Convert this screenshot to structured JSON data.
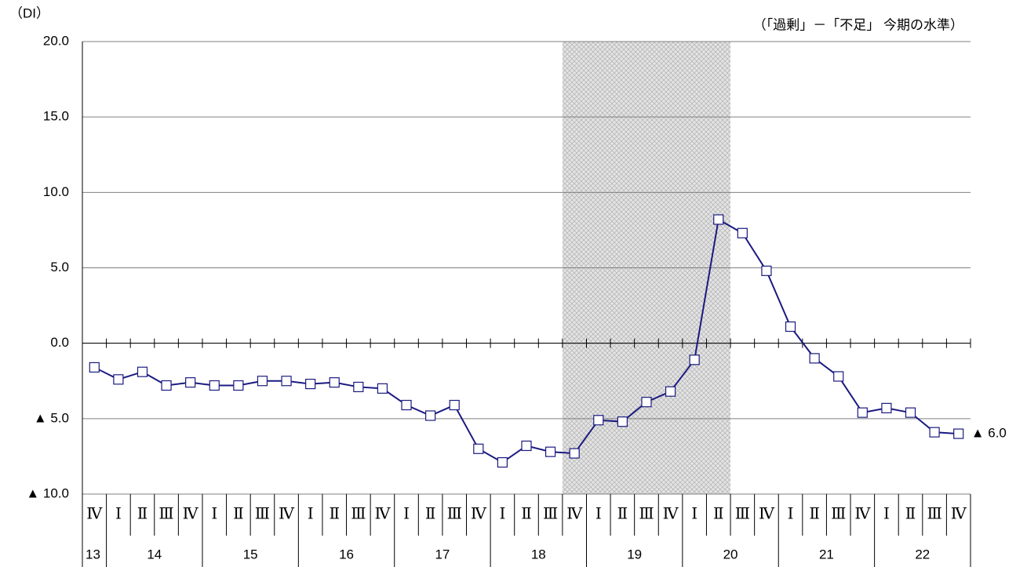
{
  "chart_data": {
    "type": "line",
    "y_unit_label": "（DI）",
    "subtitle": "（「過剰」－「不足」 今期の水準）",
    "category_groups": [
      {
        "label": "13",
        "categories": [
          "Ⅳ"
        ]
      },
      {
        "label": "14",
        "categories": [
          "Ⅰ",
          "Ⅱ",
          "Ⅲ",
          "Ⅳ"
        ]
      },
      {
        "label": "15",
        "categories": [
          "Ⅰ",
          "Ⅱ",
          "Ⅲ",
          "Ⅳ"
        ]
      },
      {
        "label": "16",
        "categories": [
          "Ⅰ",
          "Ⅱ",
          "Ⅲ",
          "Ⅳ"
        ]
      },
      {
        "label": "17",
        "categories": [
          "Ⅰ",
          "Ⅱ",
          "Ⅲ",
          "Ⅳ"
        ]
      },
      {
        "label": "18",
        "categories": [
          "Ⅰ",
          "Ⅱ",
          "Ⅲ",
          "Ⅳ"
        ]
      },
      {
        "label": "19",
        "categories": [
          "Ⅰ",
          "Ⅱ",
          "Ⅲ",
          "Ⅳ"
        ]
      },
      {
        "label": "20",
        "categories": [
          "Ⅰ",
          "Ⅱ",
          "Ⅲ",
          "Ⅳ"
        ]
      },
      {
        "label": "21",
        "categories": [
          "Ⅰ",
          "Ⅱ",
          "Ⅲ",
          "Ⅳ"
        ]
      },
      {
        "label": "22",
        "categories": [
          "Ⅰ",
          "Ⅱ",
          "Ⅲ",
          "Ⅳ"
        ]
      }
    ],
    "values": [
      -1.6,
      -2.4,
      -1.9,
      -2.8,
      -2.6,
      -2.8,
      -2.8,
      -2.5,
      -2.5,
      -2.7,
      -2.6,
      -2.9,
      -3.0,
      -4.1,
      -4.8,
      -4.1,
      -7.0,
      -7.9,
      -6.8,
      -7.2,
      -7.3,
      -5.1,
      -5.2,
      -3.9,
      -3.2,
      -1.1,
      8.2,
      7.3,
      4.8,
      1.1,
      -1.0,
      -2.2,
      -4.6,
      -4.3,
      -4.6,
      -5.9,
      -6.0
    ],
    "value_labels": [
      null,
      null,
      null,
      null,
      null,
      null,
      null,
      null,
      null,
      null,
      null,
      null,
      null,
      null,
      null,
      null,
      null,
      null,
      null,
      null,
      null,
      null,
      null,
      null,
      null,
      null,
      null,
      null,
      null,
      null,
      null,
      null,
      null,
      null,
      null,
      null,
      "▲ 6.0"
    ],
    "color": "#1a1a80",
    "ylim": [
      -10,
      20
    ],
    "yticks": [
      {
        "value": -10,
        "label": "▲ 10.0"
      },
      {
        "value": -5,
        "label": "▲ 5.0"
      },
      {
        "value": 0,
        "label": "0.0"
      },
      {
        "value": 5,
        "label": "5.0"
      },
      {
        "value": 10,
        "label": "10.0"
      },
      {
        "value": 15,
        "label": "15.0"
      },
      {
        "value": 20,
        "label": "20.0"
      }
    ],
    "grid": true
  }
}
